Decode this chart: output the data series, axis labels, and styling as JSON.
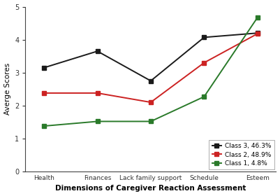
{
  "categories": [
    "Health",
    "Finances",
    "Lack family support",
    "Schedule",
    "Esteem"
  ],
  "class3": [
    3.15,
    3.65,
    2.75,
    4.07,
    4.2
  ],
  "class2": [
    2.38,
    2.38,
    2.1,
    3.3,
    4.18
  ],
  "class1": [
    1.38,
    1.52,
    1.52,
    2.27,
    4.67
  ],
  "class3_label": "Class 3, 46.3%",
  "class2_label": "Class 2, 48.9%",
  "class1_label": "Class 1, 4.8%",
  "class3_color": "#1a1a1a",
  "class2_color": "#cc2222",
  "class1_color": "#2a7a2a",
  "ylabel": "Averge Scores",
  "xlabel": "Dimensions of Caregiver Reaction Assessment",
  "ylim": [
    0,
    5
  ],
  "yticks": [
    0,
    1,
    2,
    3,
    4,
    5
  ],
  "background_color": "#ffffff",
  "marker": "s",
  "linewidth": 1.4,
  "markersize": 4
}
